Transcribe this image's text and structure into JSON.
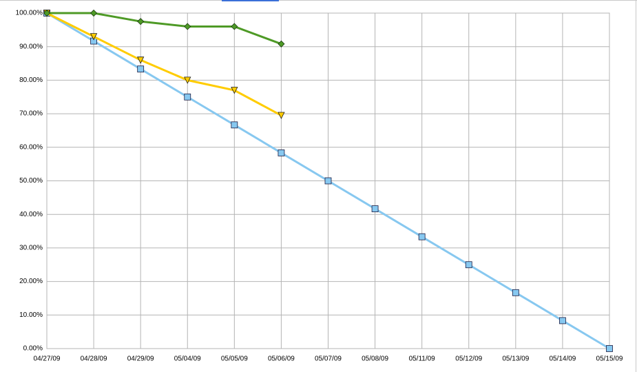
{
  "chart_data": {
    "type": "line",
    "categories": [
      "04/27/09",
      "04/28/09",
      "04/29/09",
      "05/04/09",
      "05/05/09",
      "05/06/09",
      "05/07/09",
      "05/08/09",
      "05/11/09",
      "05/12/09",
      "05/13/09",
      "05/14/09",
      "05/15/09"
    ],
    "series": [
      {
        "color": "#87c8f0",
        "marker": "square",
        "values": [
          100,
          91.67,
          83.33,
          75,
          66.67,
          58.33,
          50,
          41.67,
          33.33,
          25,
          16.67,
          8.33,
          0
        ]
      },
      {
        "color": "#ffcc00",
        "marker": "triangle-down",
        "values": [
          100,
          93,
          86,
          80,
          77,
          69.5,
          null,
          null,
          null,
          null,
          null,
          null,
          null
        ]
      },
      {
        "color": "#4e9a26",
        "marker": "diamond",
        "values": [
          100,
          100,
          97.5,
          96,
          96,
          90.8,
          null,
          null,
          null,
          null,
          null,
          null,
          null
        ]
      }
    ],
    "ylim": [
      0,
      100
    ],
    "yticks": [
      {
        "value": 0,
        "label": "0.00%"
      },
      {
        "value": 10,
        "label": "10.00%"
      },
      {
        "value": 20,
        "label": "20.00%"
      },
      {
        "value": 30,
        "label": "30.00%"
      },
      {
        "value": 40,
        "label": "40.00%"
      },
      {
        "value": 50,
        "label": "50.00%"
      },
      {
        "value": 60,
        "label": "60.00%"
      },
      {
        "value": 70,
        "label": "70.00%"
      },
      {
        "value": 80,
        "label": "80.00%"
      },
      {
        "value": 90,
        "label": "90.00%"
      },
      {
        "value": 100,
        "label": "100.00%"
      }
    ],
    "grid": true
  }
}
